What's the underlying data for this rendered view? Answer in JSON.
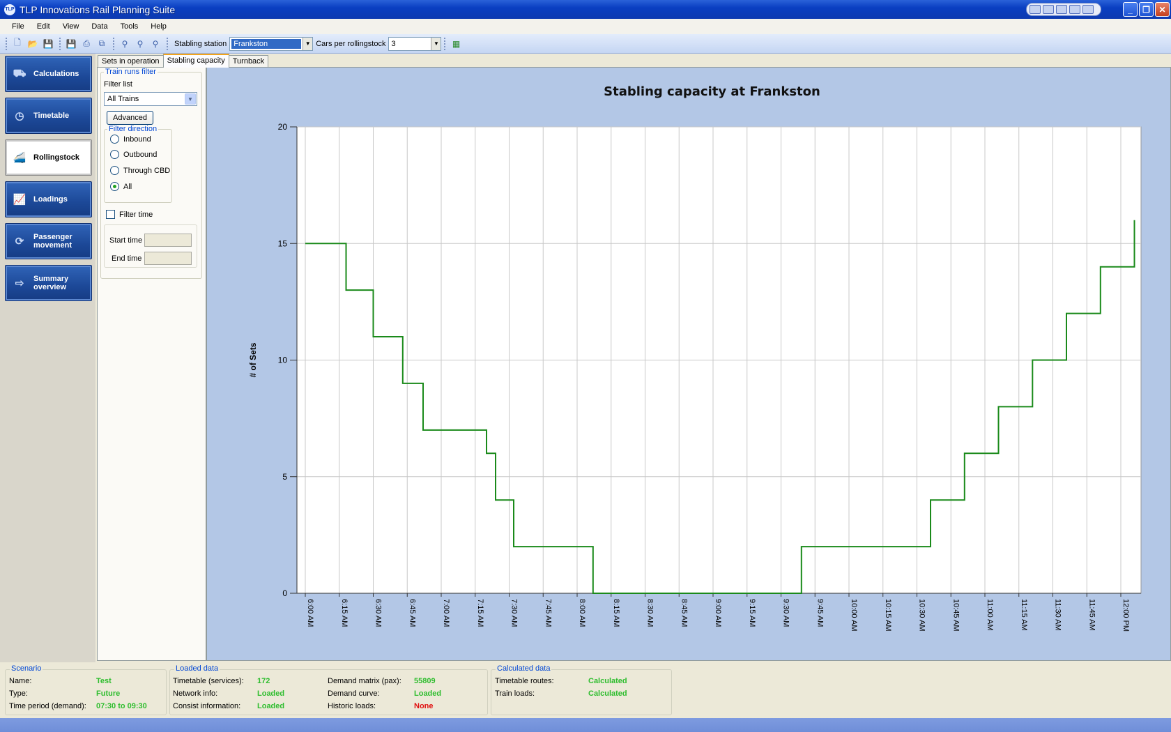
{
  "window": {
    "title": "TLP Innovations Rail Planning Suite",
    "icon_text": "TLP"
  },
  "menu": [
    "File",
    "Edit",
    "View",
    "Data",
    "Tools",
    "Help"
  ],
  "toolbar": {
    "stabling_station_label": "Stabling station",
    "stabling_station_value": "Frankston",
    "cars_label": "Cars per rollingstock",
    "cars_value": "3"
  },
  "nav": [
    {
      "label": "Calculations",
      "icon": "train-icon",
      "active": false
    },
    {
      "label": "Timetable",
      "icon": "clock-icon",
      "active": false
    },
    {
      "label": "Rollingstock",
      "icon": "locomotive-icon",
      "active": true
    },
    {
      "label": "Loadings",
      "icon": "chart-line-icon",
      "active": false
    },
    {
      "label": "Passenger movement",
      "icon": "refresh-arrows-icon",
      "active": false
    },
    {
      "label": "Summary overview",
      "icon": "arrow-right-icon",
      "active": false
    }
  ],
  "tabs": [
    {
      "label": "Sets in operation",
      "active": false
    },
    {
      "label": "Stabling capacity",
      "active": true
    },
    {
      "label": "Turnback",
      "active": false
    }
  ],
  "filter": {
    "group_title": "Train runs filter",
    "filter_list_label": "Filter list",
    "filter_list_value": "All Trains",
    "advanced_label": "Advanced",
    "direction_title": "Filter direction",
    "directions": [
      {
        "label": "Inbound",
        "checked": false
      },
      {
        "label": "Outbound",
        "checked": false
      },
      {
        "label": "Through CBD",
        "checked": false
      },
      {
        "label": "All",
        "checked": true
      }
    ],
    "filter_time_label": "Filter time",
    "filter_time_checked": false,
    "start_time_label": "Start time",
    "end_time_label": "End time"
  },
  "chart_data": {
    "type": "line",
    "step": true,
    "title": "Stabling capacity at Frankston",
    "xlabel": "",
    "ylabel": "# of Sets",
    "ylim": [
      0,
      20
    ],
    "yticks": [
      0,
      5,
      10,
      15,
      20
    ],
    "xticks": [
      "6:00 AM",
      "6:15 AM",
      "6:30 AM",
      "6:45 AM",
      "7:00 AM",
      "7:15 AM",
      "7:30 AM",
      "7:45 AM",
      "8:00 AM",
      "8:15 AM",
      "8:30 AM",
      "8:45 AM",
      "9:00 AM",
      "9:15 AM",
      "9:30 AM",
      "9:45 AM",
      "10:00 AM",
      "10:15 AM",
      "10:30 AM",
      "10:45 AM",
      "11:00 AM",
      "11:15 AM",
      "11:30 AM",
      "11:45 AM",
      "12:00 PM"
    ],
    "grid": true,
    "color": "#1a8a1a",
    "series": [
      {
        "points": [
          [
            "6:00 AM",
            15
          ],
          [
            "6:18 AM",
            15
          ],
          [
            "6:18 AM",
            13
          ],
          [
            "6:30 AM",
            13
          ],
          [
            "6:30 AM",
            11
          ],
          [
            "6:43 AM",
            11
          ],
          [
            "6:43 AM",
            9
          ],
          [
            "6:52 AM",
            9
          ],
          [
            "6:52 AM",
            7
          ],
          [
            "7:20 AM",
            7
          ],
          [
            "7:20 AM",
            6
          ],
          [
            "7:24 AM",
            6
          ],
          [
            "7:24 AM",
            4
          ],
          [
            "7:32 AM",
            4
          ],
          [
            "7:32 AM",
            2
          ],
          [
            "8:07 AM",
            2
          ],
          [
            "8:07 AM",
            0
          ],
          [
            "9:39 AM",
            0
          ],
          [
            "9:39 AM",
            2
          ],
          [
            "10:36 AM",
            2
          ],
          [
            "10:36 AM",
            4
          ],
          [
            "10:51 AM",
            4
          ],
          [
            "10:51 AM",
            6
          ],
          [
            "11:06 AM",
            6
          ],
          [
            "11:06 AM",
            8
          ],
          [
            "11:21 AM",
            8
          ],
          [
            "11:21 AM",
            10
          ],
          [
            "11:36 AM",
            10
          ],
          [
            "11:36 AM",
            12
          ],
          [
            "11:51 AM",
            12
          ],
          [
            "11:51 AM",
            14
          ],
          [
            "12:06 PM",
            14
          ],
          [
            "12:06 PM",
            16
          ]
        ]
      }
    ]
  },
  "status": {
    "scenario": {
      "title": "Scenario",
      "rows": [
        {
          "label": "Name:",
          "value": "Test"
        },
        {
          "label": "Type:",
          "value": "Future"
        },
        {
          "label": "Time period (demand):",
          "value": "07:30 to 09:30"
        }
      ]
    },
    "loaded": {
      "title": "Loaded data",
      "rows": [
        {
          "label": "Timetable (services):",
          "value": "172"
        },
        {
          "label": "Network info:",
          "value": "Loaded"
        },
        {
          "label": "Consist information:",
          "value": "Loaded"
        },
        {
          "label": "Demand matrix (pax):",
          "value": "55809"
        },
        {
          "label": "Demand curve:",
          "value": "Loaded"
        },
        {
          "label": "Historic loads:",
          "value": "None"
        }
      ]
    },
    "calculated": {
      "title": "Calculated data",
      "rows": [
        {
          "label": "Timetable routes:",
          "value": "Calculated"
        },
        {
          "label": "Train loads:",
          "value": "Calculated"
        }
      ]
    }
  }
}
